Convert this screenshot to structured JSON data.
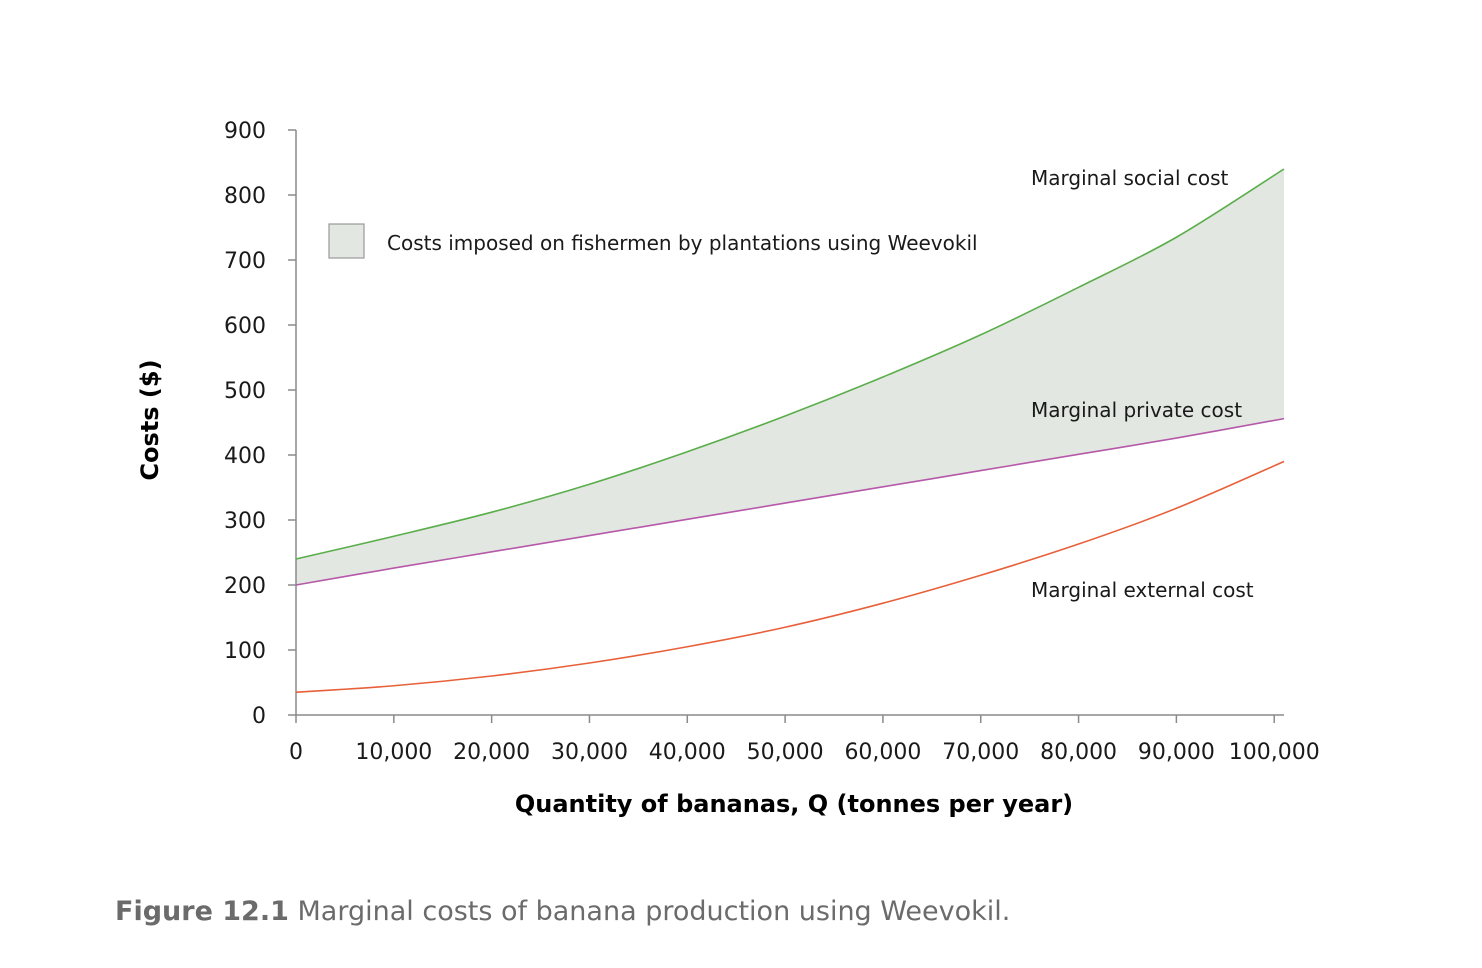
{
  "caption": {
    "number": "Figure 12.1",
    "text": "Marginal costs of banana production using Weevokil."
  },
  "chart_data": {
    "type": "line",
    "xlabel": "Quantity of bananas, Q (tonnes per year)",
    "ylabel": "Costs ($)",
    "xlim": [
      0,
      101000
    ],
    "ylim": [
      0,
      900
    ],
    "x_ticks": [
      "0",
      "10,000",
      "20,000",
      "30,000",
      "40,000",
      "50,000",
      "60,000",
      "70,000",
      "80,000",
      "90,000",
      "100,000"
    ],
    "y_ticks": [
      "0",
      "100",
      "200",
      "300",
      "400",
      "500",
      "600",
      "700",
      "800",
      "900"
    ],
    "grid": false,
    "x": [
      0,
      10000,
      20000,
      30000,
      40000,
      50000,
      60000,
      70000,
      80000,
      90000,
      101000
    ],
    "series": [
      {
        "name": "Marginal social cost",
        "color": "#5aae4a",
        "values": [
          240,
          275,
          312,
          355,
          405,
          460,
          520,
          585,
          658,
          735,
          840
        ]
      },
      {
        "name": "Marginal private cost",
        "color": "#b559a8",
        "values": [
          200,
          226,
          251,
          276,
          301,
          326,
          351,
          376,
          401,
          426,
          456
        ]
      },
      {
        "name": "Marginal external cost",
        "color": "#e8603a",
        "values": [
          35,
          45,
          60,
          80,
          105,
          135,
          172,
          215,
          263,
          318,
          390
        ]
      }
    ],
    "shaded_region": {
      "label": "Costs imposed on fishermen by plantations using Weevokil",
      "between": [
        "Marginal private cost",
        "Marginal social cost"
      ],
      "color": "#e2e7e1"
    },
    "legend_position": "top-left"
  }
}
